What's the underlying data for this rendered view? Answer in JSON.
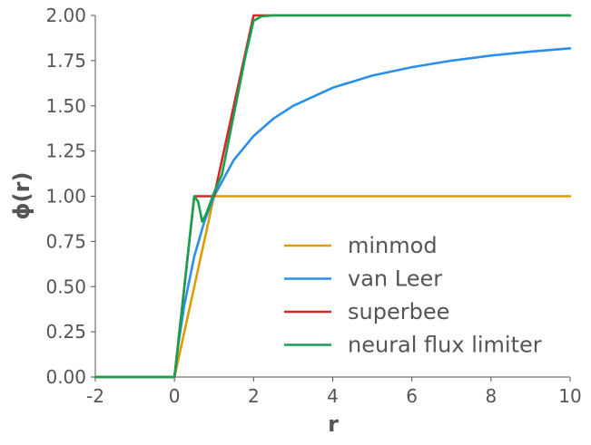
{
  "chart_data": {
    "type": "line",
    "title": "",
    "xlabel": "r",
    "ylabel": "ϕ(r)",
    "xlim": [
      -2,
      10
    ],
    "ylim": [
      0,
      2
    ],
    "xticks": [
      -2,
      0,
      2,
      4,
      6,
      8,
      10
    ],
    "xtick_labels": [
      "-2",
      "0",
      "2",
      "4",
      "6",
      "8",
      "10"
    ],
    "yticks": [
      0,
      0.25,
      0.5,
      0.75,
      1.0,
      1.25,
      1.5,
      1.75,
      2.0
    ],
    "ytick_labels": [
      "0.00",
      "0.25",
      "0.50",
      "0.75",
      "1.00",
      "1.25",
      "1.50",
      "1.75",
      "2.00"
    ],
    "grid": false,
    "legend_position": "bottom-right",
    "series": [
      {
        "name": "minmod",
        "color": "#E09B00",
        "x": [
          -2,
          0,
          1,
          10
        ],
        "y": [
          0,
          0,
          1,
          1
        ]
      },
      {
        "name": "van Leer",
        "color": "#2A8FEA",
        "x": [
          -2,
          0,
          0.1,
          0.25,
          0.5,
          0.75,
          1,
          1.5,
          2,
          2.5,
          3,
          4,
          5,
          6,
          7,
          8,
          9,
          10
        ],
        "y": [
          0,
          0,
          0.182,
          0.4,
          0.667,
          0.857,
          1,
          1.2,
          1.333,
          1.429,
          1.5,
          1.6,
          1.667,
          1.714,
          1.75,
          1.778,
          1.8,
          1.818
        ]
      },
      {
        "name": "superbee",
        "color": "#D62728",
        "x": [
          -2,
          0,
          0.5,
          1,
          2,
          10
        ],
        "y": [
          0,
          0,
          1,
          1,
          2,
          2
        ]
      },
      {
        "name": "neural flux limiter",
        "color": "#17A050",
        "x": [
          -2,
          0,
          0.25,
          0.5,
          0.6,
          0.7,
          0.8,
          0.9,
          1,
          1.2,
          1.5,
          1.8,
          2,
          2.2,
          2.5,
          10
        ],
        "y": [
          0,
          0,
          0.5,
          1.0,
          0.97,
          0.86,
          0.9,
          0.96,
          1.02,
          1.12,
          1.45,
          1.78,
          1.97,
          1.995,
          2.0,
          2.0
        ]
      }
    ]
  }
}
